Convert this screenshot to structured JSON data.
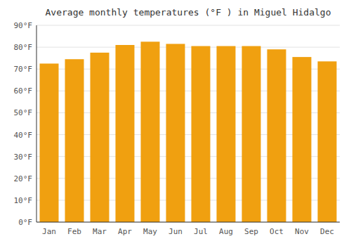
{
  "chart_data": {
    "type": "bar",
    "title": "Average monthly temperatures (°F ) in Miguel Hidalgo",
    "categories": [
      "Jan",
      "Feb",
      "Mar",
      "Apr",
      "May",
      "Jun",
      "Jul",
      "Aug",
      "Sep",
      "Oct",
      "Nov",
      "Dec"
    ],
    "values": [
      72.5,
      74.5,
      77.5,
      81.0,
      82.5,
      81.5,
      80.5,
      80.5,
      80.5,
      79.0,
      75.5,
      73.5
    ],
    "color": "#F0A010",
    "ylim": [
      0,
      90
    ],
    "yticks": [
      {
        "value": 0,
        "label": "0°F"
      },
      {
        "value": 10,
        "label": "10°F"
      },
      {
        "value": 20,
        "label": "20°F"
      },
      {
        "value": 30,
        "label": "30°F"
      },
      {
        "value": 40,
        "label": "40°F"
      },
      {
        "value": 50,
        "label": "50°F"
      },
      {
        "value": 60,
        "label": "60°F"
      },
      {
        "value": 70,
        "label": "70°F"
      },
      {
        "value": 80,
        "label": "80°F"
      },
      {
        "value": 90,
        "label": "90°F"
      }
    ],
    "grid": true
  }
}
